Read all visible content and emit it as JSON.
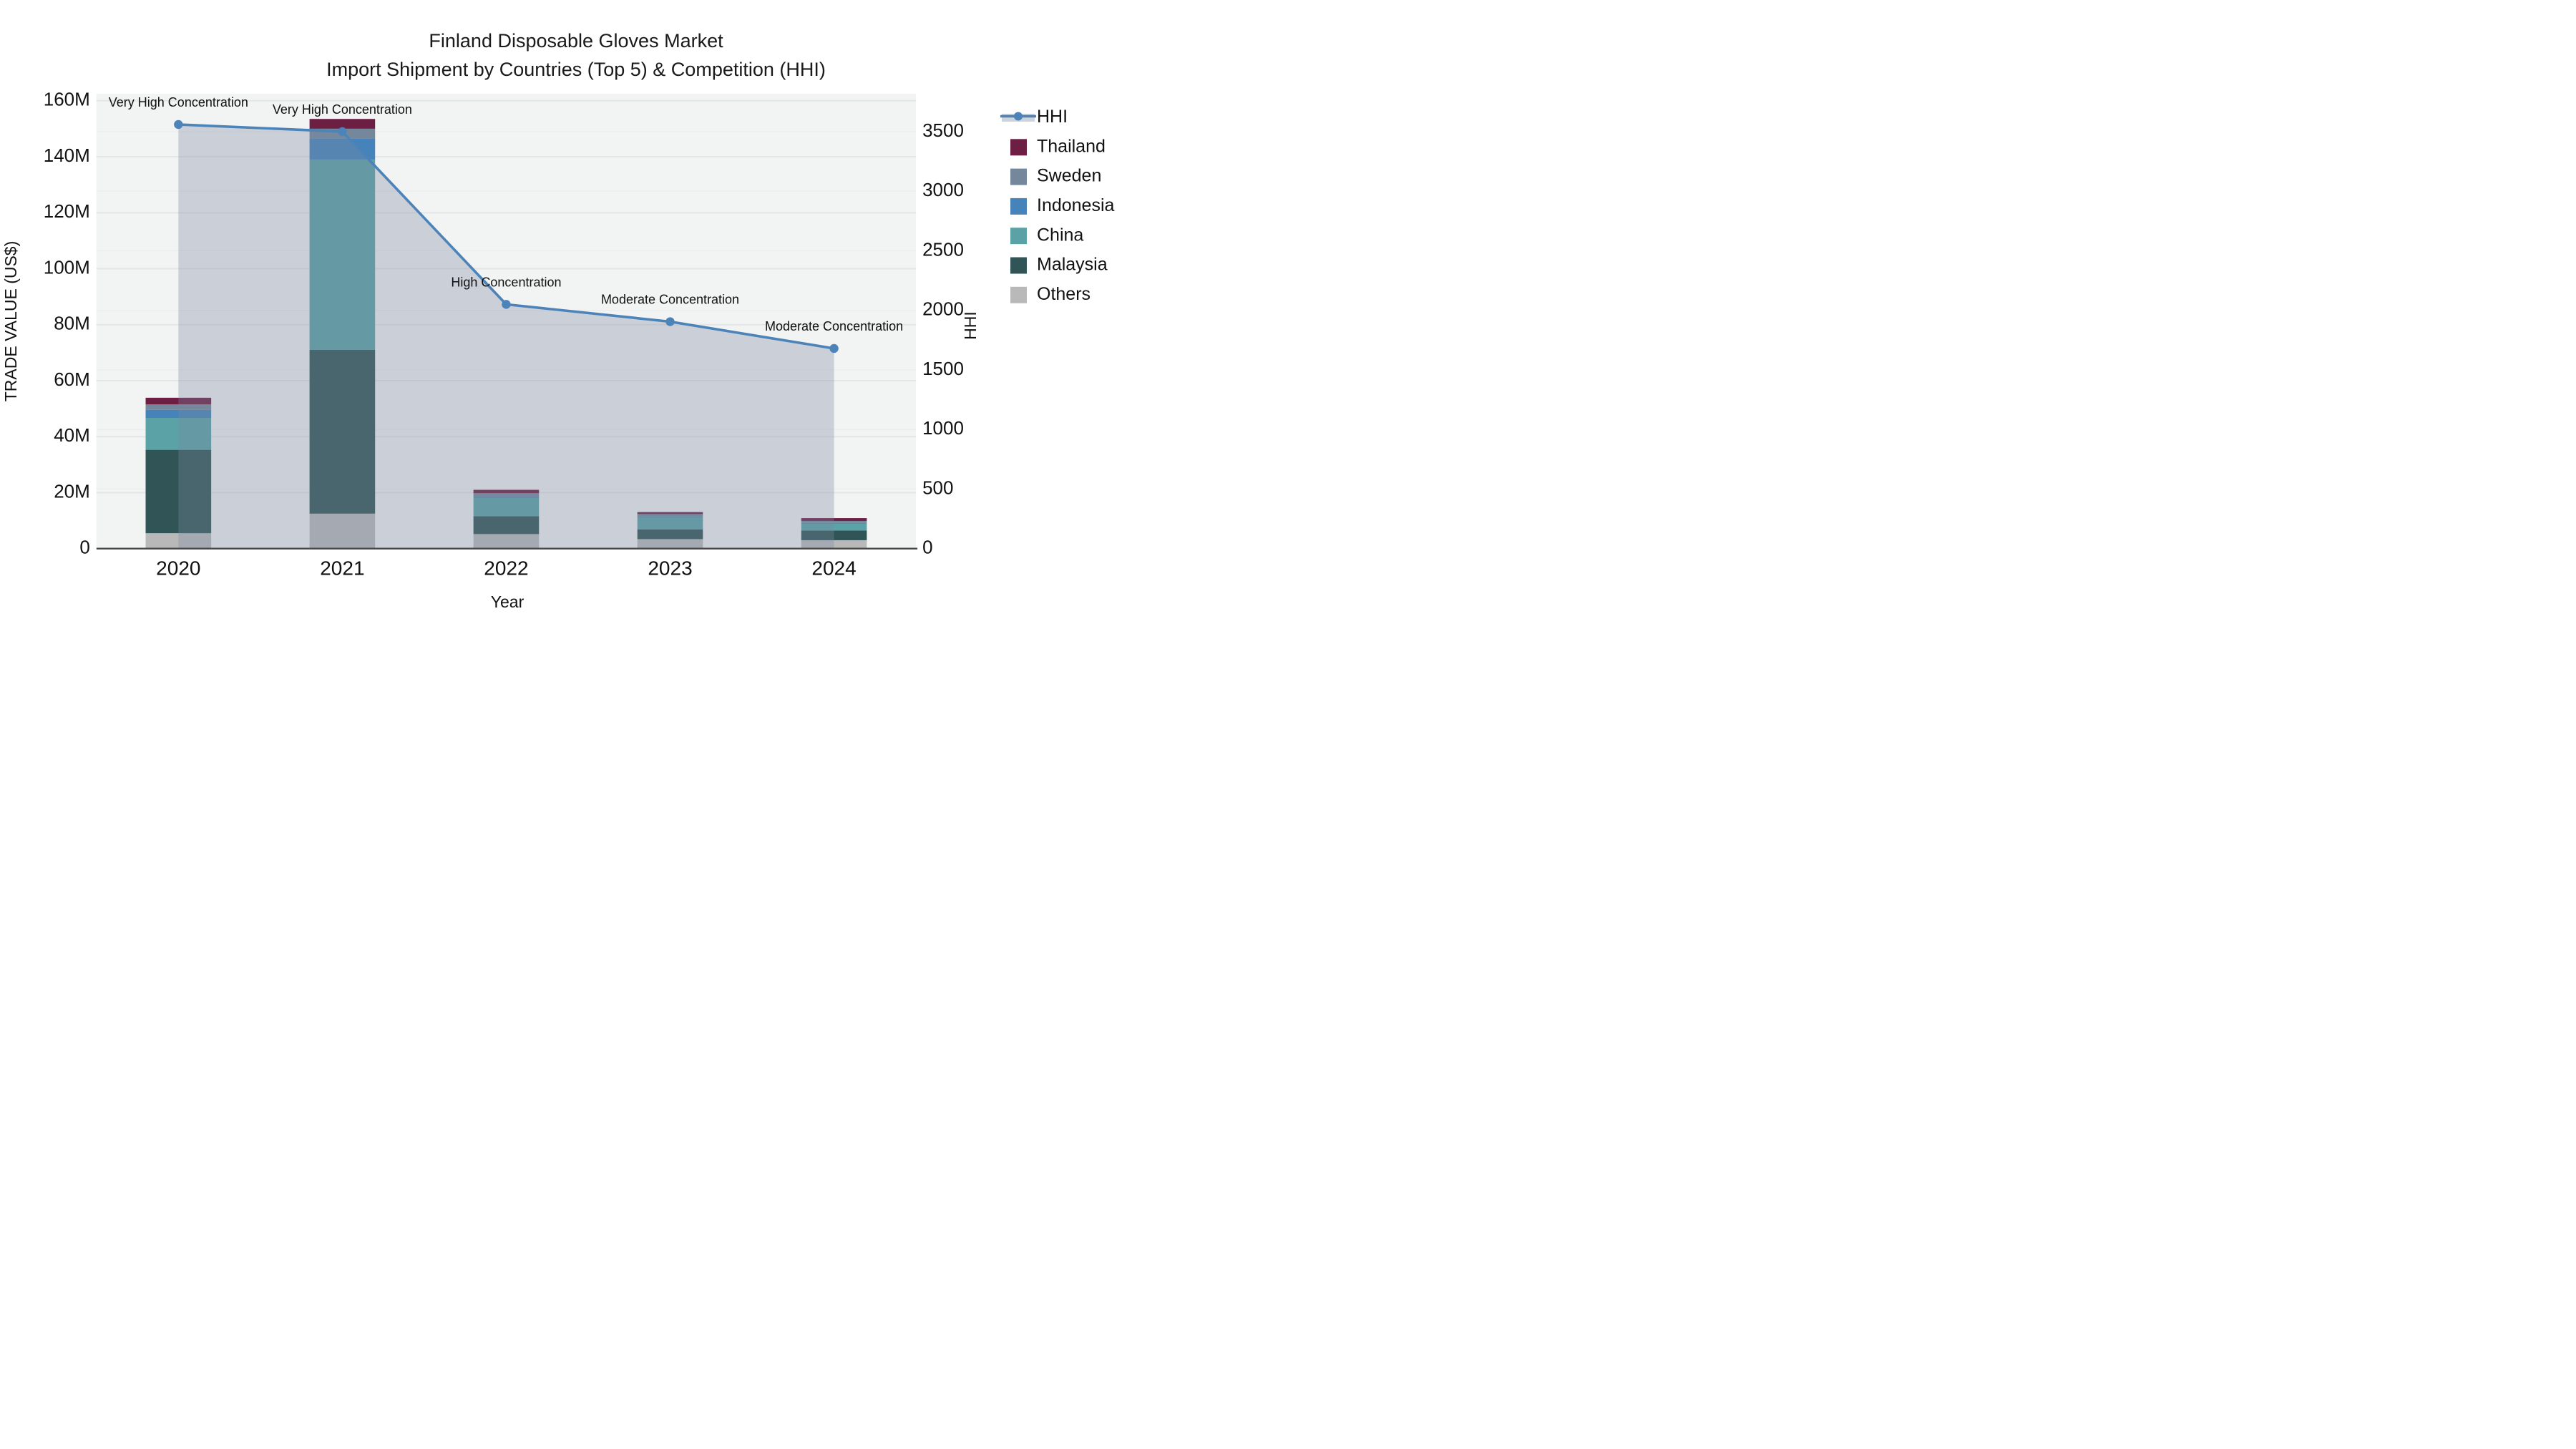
{
  "chart_data": {
    "type": "combo: stacked-bar (left axis) + line with area fill (right axis)",
    "title_line1": "Finland Disposable Gloves Market",
    "title_line2": "Import Shipment by Countries (Top 5) & Competition (HHI)",
    "xlabel": "Year",
    "ylabel_left": "TRADE VALUE (US$)",
    "ylabel_right": "HHI",
    "categories": [
      "2020",
      "2021",
      "2022",
      "2023",
      "2024"
    ],
    "bar_value_unit": "US$ millions",
    "bar_series_bottom_to_top": [
      {
        "name": "Others",
        "color": "#b9b9ba",
        "values": [
          5.5,
          12.5,
          5.2,
          3.4,
          3.0
        ]
      },
      {
        "name": "Malaysia",
        "color": "#315456",
        "values": [
          29.8,
          58.5,
          6.4,
          3.5,
          3.5
        ]
      },
      {
        "name": "China",
        "color": "#5aa2a5",
        "values": [
          11.4,
          68.0,
          6.5,
          4.4,
          2.4
        ]
      },
      {
        "name": "Indonesia",
        "color": "#4583ba",
        "values": [
          2.9,
          7.5,
          0.4,
          0.15,
          0.3
        ]
      },
      {
        "name": "Sweden",
        "color": "#75889b",
        "values": [
          1.9,
          3.5,
          1.3,
          0.9,
          0.7
        ]
      },
      {
        "name": "Thailand",
        "color": "#6c1f43",
        "values": [
          2.4,
          3.5,
          1.2,
          0.7,
          1.0
        ]
      }
    ],
    "line_series": {
      "name": "HHI",
      "color": "#4c83b8",
      "area_fill": "rgba(123,137,162,0.33)",
      "values": [
        3560,
        3500,
        2050,
        1905,
        1680
      ]
    },
    "annotations": [
      {
        "category": "2020",
        "text": "Very High Concentration"
      },
      {
        "category": "2021",
        "text": "Very High Concentration"
      },
      {
        "category": "2022",
        "text": "High Concentration"
      },
      {
        "category": "2023",
        "text": "Moderate Concentration"
      },
      {
        "category": "2024",
        "text": "Moderate Concentration"
      }
    ],
    "y_left": {
      "tick_values": [
        0,
        20,
        40,
        60,
        80,
        100,
        120,
        140,
        160
      ],
      "tick_labels": [
        "0",
        "20M",
        "40M",
        "60M",
        "80M",
        "100M",
        "120M",
        "140M",
        "160M"
      ],
      "max": 162.5
    },
    "y_right": {
      "tick_values": [
        0,
        500,
        1000,
        1500,
        2000,
        2500,
        3000,
        3500
      ],
      "tick_labels": [
        "0",
        "500",
        "1000",
        "1500",
        "2000",
        "2500",
        "3000",
        "3500"
      ],
      "max": 3818
    },
    "legend": {
      "items": [
        "HHI",
        "Thailand",
        "Sweden",
        "Indonesia",
        "China",
        "Malaysia",
        "Others"
      ]
    },
    "colors": {
      "plot_background": "#f2f3f3",
      "grid_major": "#e3e6e8",
      "grid_minor": "#eaedee",
      "axis_line": "#474747",
      "text": "#111111"
    }
  }
}
